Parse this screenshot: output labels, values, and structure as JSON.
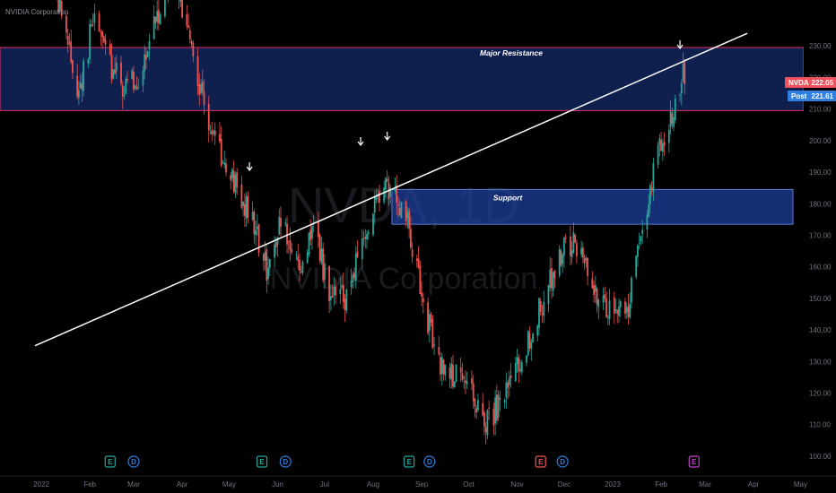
{
  "header": {
    "title": "NVIDIA Corporation"
  },
  "watermark": {
    "symbol": "NVDA, 1D",
    "name": "NVIDIA Corporation"
  },
  "price_labels": {
    "last": {
      "label": "NVDA",
      "value": "222.05",
      "color": "#f0525d"
    },
    "post": {
      "label": "Post",
      "value": "221.61",
      "color": "#2f7fe0"
    }
  },
  "chart_data": {
    "type": "candlestick",
    "title": "",
    "x_ticks": [
      "2022",
      "Feb",
      "Mar",
      "Apr",
      "May",
      "Jun",
      "Jul",
      "Aug",
      "Sep",
      "Oct",
      "Nov",
      "Dec",
      "2023",
      "Feb",
      "Mar",
      "Apr",
      "May"
    ],
    "y_ticks": [
      "230.00",
      "220.00",
      "210.00",
      "200.00",
      "190.00",
      "180.00",
      "170.00",
      "160.00",
      "150.00",
      "140.00",
      "130.00",
      "120.00",
      "110.00",
      "100.00"
    ],
    "ylim": [
      98,
      240
    ],
    "zones": [
      {
        "name": "Major Resistance",
        "low": 209.5,
        "high": 229.5,
        "fill": "#1c3a8f",
        "border": "#e0326a",
        "label_color": "#e0326a"
      },
      {
        "name": "Support",
        "low": 173.5,
        "high": 184.5,
        "fill": "#1e3f9b",
        "border": "#5a7bd8",
        "label_color": "#ffffff"
      }
    ],
    "trendline": {
      "from": [
        "2021-12-28",
        135
      ],
      "to": [
        "2023-03-28",
        234
      ],
      "color": "#ffffff"
    },
    "arrows": [
      "2022-05-14",
      "2022-07-24",
      "2022-08-10",
      "2023-02-13"
    ],
    "candles": {
      "up_color": "#26a69a",
      "down_color": "#ef5350",
      "path": [
        [
          "2022-01-05",
          258
        ],
        [
          "2022-01-15",
          236
        ],
        [
          "2022-01-25",
          215
        ],
        [
          "2022-02-04",
          240
        ],
        [
          "2022-02-14",
          224
        ],
        [
          "2022-02-24",
          216
        ],
        [
          "2022-03-06",
          222
        ],
        [
          "2022-03-16",
          240
        ],
        [
          "2022-03-26",
          255
        ],
        [
          "2022-04-05",
          234
        ],
        [
          "2022-04-15",
          212
        ],
        [
          "2022-04-25",
          196
        ],
        [
          "2022-05-05",
          185
        ],
        [
          "2022-05-15",
          175
        ],
        [
          "2022-05-25",
          160
        ],
        [
          "2022-06-04",
          176
        ],
        [
          "2022-06-14",
          158
        ],
        [
          "2022-06-24",
          172
        ],
        [
          "2022-07-04",
          152
        ],
        [
          "2022-07-14",
          150
        ],
        [
          "2022-07-24",
          166
        ],
        [
          "2022-08-03",
          180
        ],
        [
          "2022-08-13",
          186
        ],
        [
          "2022-08-23",
          175
        ],
        [
          "2022-09-02",
          148
        ],
        [
          "2022-09-12",
          130
        ],
        [
          "2022-09-22",
          125
        ],
        [
          "2022-10-02",
          120
        ],
        [
          "2022-10-12",
          112
        ],
        [
          "2022-10-22",
          116
        ],
        [
          "2022-11-01",
          128
        ],
        [
          "2022-11-11",
          140
        ],
        [
          "2022-11-21",
          155
        ],
        [
          "2022-12-01",
          165
        ],
        [
          "2022-12-11",
          168
        ],
        [
          "2022-12-21",
          152
        ],
        [
          "2023-01-01",
          145
        ],
        [
          "2023-01-11",
          148
        ],
        [
          "2023-01-21",
          176
        ],
        [
          "2023-01-31",
          198
        ],
        [
          "2023-02-10",
          212
        ],
        [
          "2023-02-16",
          222
        ]
      ]
    },
    "events": [
      {
        "date": "2022-02-14",
        "letter": "E",
        "color": "#26a69a"
      },
      {
        "date": "2022-03-01",
        "letter": "D",
        "color": "#2f7fe0"
      },
      {
        "date": "2022-05-22",
        "letter": "E",
        "color": "#26a69a"
      },
      {
        "date": "2022-06-06",
        "letter": "D",
        "color": "#2f7fe0"
      },
      {
        "date": "2022-08-24",
        "letter": "E",
        "color": "#26a69a"
      },
      {
        "date": "2022-09-06",
        "letter": "D",
        "color": "#2f7fe0"
      },
      {
        "date": "2022-11-16",
        "letter": "E",
        "color": "#ef5350"
      },
      {
        "date": "2022-11-30",
        "letter": "D",
        "color": "#2f7fe0"
      },
      {
        "date": "2023-02-22",
        "letter": "E",
        "color": "#c040c8"
      }
    ]
  }
}
